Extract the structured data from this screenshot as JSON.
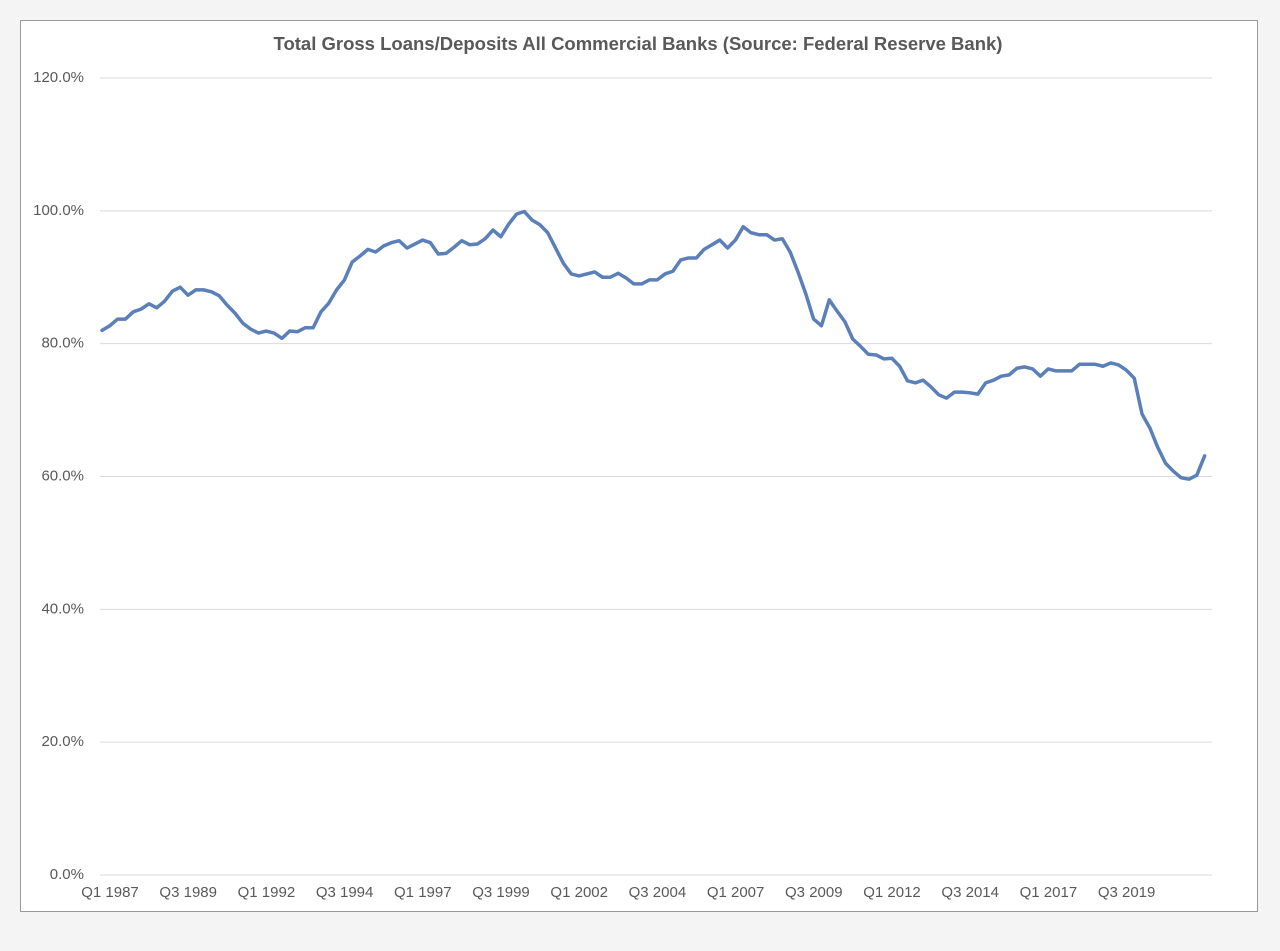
{
  "chart_data": {
    "type": "line",
    "title": "Total Gross Loans/Deposits  All Commercial Banks (Source: Federal Reserve Bank)",
    "categories": [
      "Q1 1987",
      null,
      null,
      null,
      null,
      null,
      null,
      null,
      null,
      null,
      "Q3 1989",
      null,
      null,
      null,
      null,
      null,
      null,
      null,
      null,
      null,
      "Q1 1992",
      null,
      null,
      null,
      null,
      null,
      null,
      null,
      null,
      null,
      "Q3 1994",
      null,
      null,
      null,
      null,
      null,
      null,
      null,
      null,
      null,
      "Q1 1997",
      null,
      null,
      null,
      null,
      null,
      null,
      null,
      null,
      null,
      "Q3 1999",
      null,
      null,
      null,
      null,
      null,
      null,
      null,
      null,
      null,
      "Q1 2002",
      null,
      null,
      null,
      null,
      null,
      null,
      null,
      null,
      null,
      "Q3 2004",
      null,
      null,
      null,
      null,
      null,
      null,
      null,
      null,
      null,
      "Q1 2007",
      null,
      null,
      null,
      null,
      null,
      null,
      null,
      null,
      null,
      "Q3 2009",
      null,
      null,
      null,
      null,
      null,
      null,
      null,
      null,
      null,
      "Q1 2012",
      null,
      null,
      null,
      null,
      null,
      null,
      null,
      null,
      null,
      "Q3 2014",
      null,
      null,
      null,
      null,
      null,
      null,
      null,
      null,
      null,
      "Q1 2017",
      null,
      null,
      null,
      null,
      null,
      null,
      null,
      null,
      null,
      "Q3 2019",
      null,
      null,
      null,
      null,
      null,
      null,
      null,
      null,
      null,
      null,
      null
    ],
    "series": [
      {
        "name": "Loans/Deposits",
        "color": "#5b7fb8",
        "values": [
          82.0,
          82.7,
          83.7,
          83.7,
          84.8,
          85.2,
          86.0,
          85.4,
          86.4,
          87.9,
          88.5,
          87.3,
          88.1,
          88.1,
          87.8,
          87.2,
          85.8,
          84.6,
          83.1,
          82.2,
          81.6,
          81.9,
          81.6,
          80.8,
          81.9,
          81.8,
          82.4,
          82.4,
          84.8,
          86.1,
          88.1,
          89.6,
          92.3,
          93.2,
          94.2,
          93.8,
          94.7,
          95.2,
          95.5,
          94.4,
          95.0,
          95.6,
          95.2,
          93.5,
          93.6,
          94.5,
          95.5,
          94.9,
          95.0,
          95.8,
          97.1,
          96.1,
          98.0,
          99.5,
          99.9,
          98.6,
          97.9,
          96.7,
          94.4,
          92.1,
          90.5,
          90.2,
          90.5,
          90.8,
          90.0,
          90.0,
          90.6,
          89.9,
          89.0,
          89.0,
          89.6,
          89.6,
          90.5,
          90.9,
          92.6,
          92.9,
          92.9,
          94.2,
          94.9,
          95.6,
          94.4,
          95.6,
          97.6,
          96.7,
          96.4,
          96.4,
          95.6,
          95.8,
          93.8,
          90.8,
          87.5,
          83.7,
          82.7,
          86.6,
          84.9,
          83.3,
          80.7,
          79.6,
          78.4,
          78.3,
          77.7,
          77.8,
          76.6,
          74.4,
          74.1,
          74.5,
          73.5,
          72.3,
          71.8,
          72.7,
          72.7,
          72.6,
          72.4,
          74.1,
          74.5,
          75.1,
          75.3,
          76.3,
          76.5,
          76.2,
          75.1,
          76.2,
          75.9,
          75.9,
          75.9,
          76.9,
          76.9,
          76.9,
          76.6,
          77.1,
          76.8,
          76.0,
          74.8,
          69.4,
          67.3,
          64.4,
          62.0,
          60.8,
          59.8,
          59.6,
          60.2,
          63.1
        ]
      }
    ],
    "ylim": [
      0,
      120
    ],
    "yticks": [
      {
        "value": 0,
        "label": "0.0%"
      },
      {
        "value": 20,
        "label": "20.0%"
      },
      {
        "value": 40,
        "label": "40.0%"
      },
      {
        "value": 60,
        "label": "60.0%"
      },
      {
        "value": 80,
        "label": "80.0%"
      },
      {
        "value": 100,
        "label": "100.0%"
      },
      {
        "value": 120,
        "label": "120.0%"
      }
    ],
    "grid": true
  }
}
